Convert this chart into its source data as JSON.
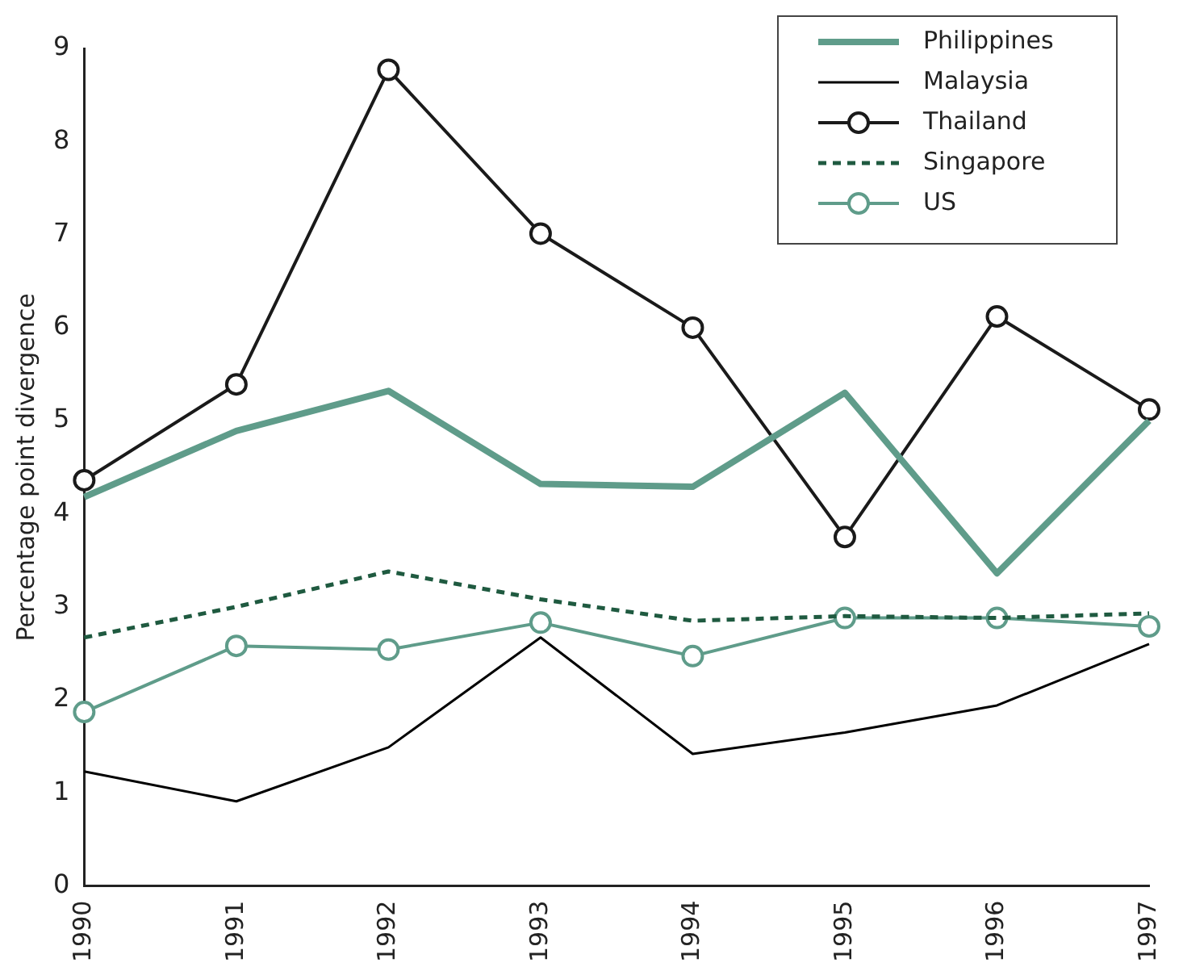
{
  "chart_data": {
    "type": "line",
    "ylabel": "Percentage point divergence",
    "categories": [
      "1990",
      "1991",
      "1992",
      "1993",
      "1994",
      "1995",
      "1996",
      "1997"
    ],
    "ylim": [
      0,
      9
    ],
    "yticks": [
      0,
      1,
      2,
      3,
      4,
      5,
      6,
      7,
      8,
      9
    ],
    "grid": false,
    "legend": "top right",
    "series": [
      {
        "name": "Philippines",
        "color": "#5f9c8a",
        "values": [
          4.18,
          4.89,
          5.32,
          4.32,
          4.29,
          5.3,
          3.36,
          5.0
        ],
        "marker": "none",
        "line_style": "solid"
      },
      {
        "name": "Malaysia",
        "color": "#000000",
        "values": [
          1.23,
          0.91,
          1.49,
          2.67,
          1.42,
          1.65,
          1.94,
          2.6
        ],
        "marker": "none",
        "line_style": "solid"
      },
      {
        "name": "Thailand",
        "color": "#1a1a1a",
        "values": [
          4.36,
          5.39,
          8.77,
          7.01,
          6.0,
          3.75,
          6.12,
          5.12
        ],
        "marker": "circle",
        "line_style": "solid"
      },
      {
        "name": "Singapore",
        "color": "#1f5a40",
        "values": [
          2.67,
          3.0,
          3.38,
          3.08,
          2.85,
          2.9,
          2.88,
          2.93
        ],
        "marker": "none",
        "line_style": "dashed"
      },
      {
        "name": "US",
        "color": "#5f9c8a",
        "values": [
          1.87,
          2.58,
          2.54,
          2.83,
          2.47,
          2.88,
          2.88,
          2.79
        ],
        "marker": "circle",
        "line_style": "solid"
      }
    ]
  }
}
